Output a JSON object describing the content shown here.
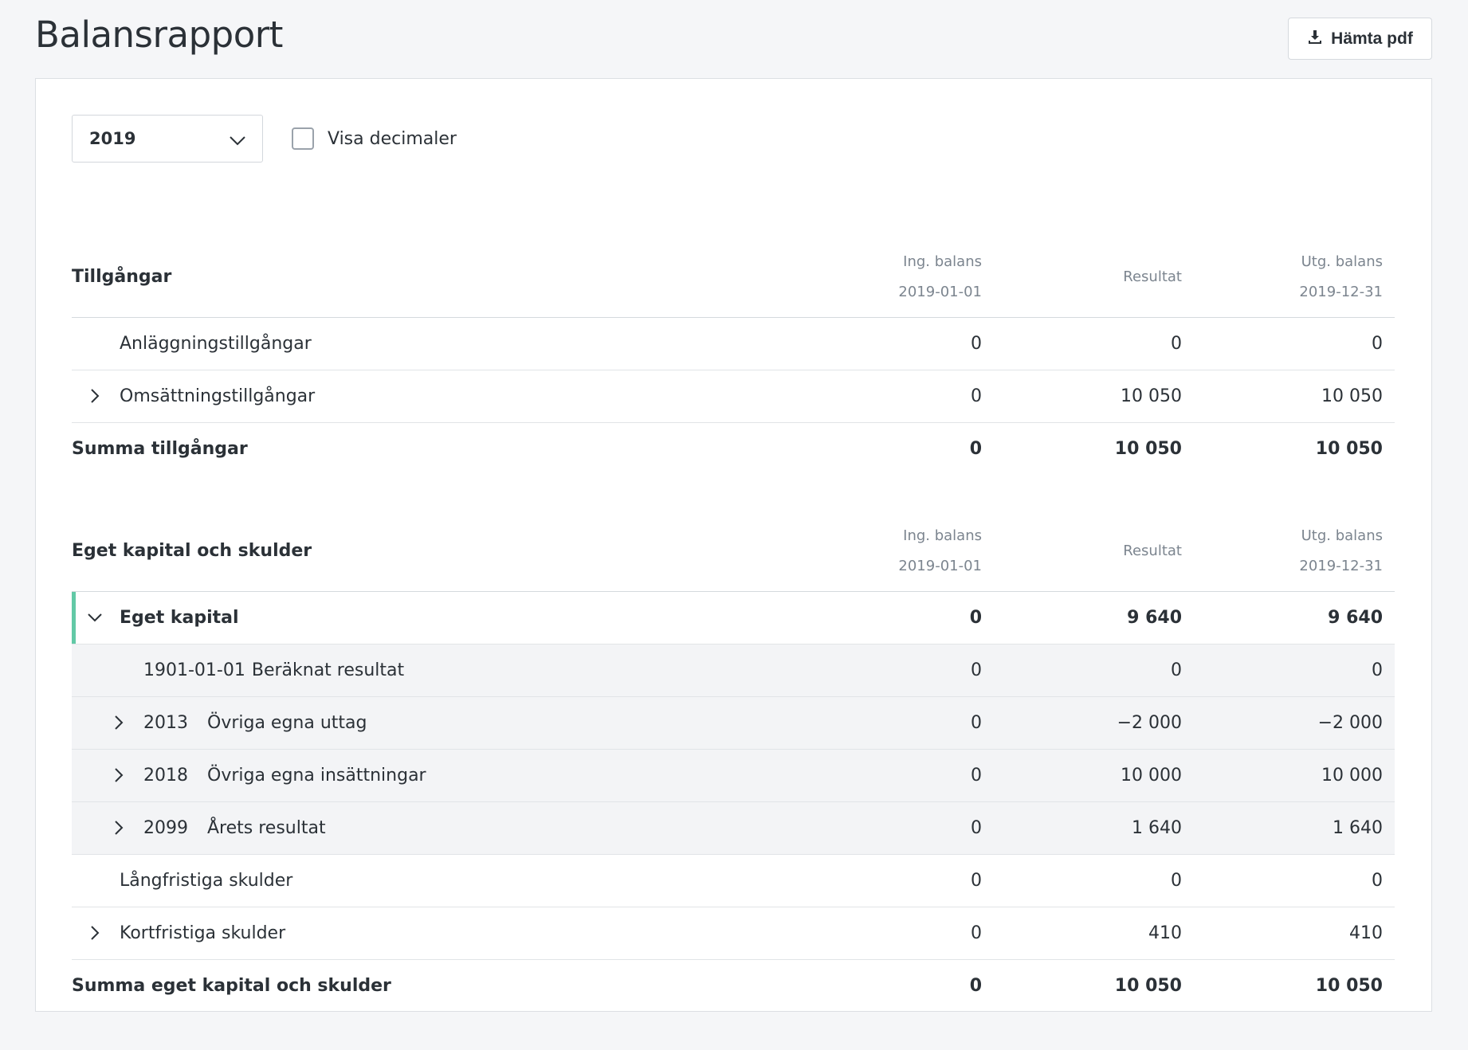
{
  "header": {
    "title": "Balansrapport",
    "pdf_button": "Hämta pdf"
  },
  "controls": {
    "year": "2019",
    "show_decimals_label": "Visa decimaler",
    "show_decimals_checked": false
  },
  "columns": {
    "opening_label": "Ing. balans",
    "opening_date": "2019-01-01",
    "result_label": "Resultat",
    "closing_label": "Utg. balans",
    "closing_date": "2019-12-31"
  },
  "assets": {
    "title": "Tillgångar",
    "rows": [
      {
        "label": "Anläggningstillgångar",
        "ing": "0",
        "res": "0",
        "utg": "0"
      },
      {
        "label": "Omsättningstillgångar",
        "ing": "0",
        "res": "10 050",
        "utg": "10 050"
      }
    ],
    "sum": {
      "label": "Summa tillgångar",
      "ing": "0",
      "res": "10 050",
      "utg": "10 050"
    }
  },
  "equity": {
    "title": "Eget kapital och skulder",
    "group": {
      "label": "Eget kapital",
      "ing": "0",
      "res": "9 640",
      "utg": "9 640"
    },
    "sub_rows": [
      {
        "account": "1901-01-01",
        "label": "Beräknat resultat",
        "ing": "0",
        "res": "0",
        "utg": "0"
      },
      {
        "account": "2013",
        "label": "Övriga egna uttag",
        "ing": "0",
        "res": "−2 000",
        "utg": "−2 000"
      },
      {
        "account": "2018",
        "label": "Övriga egna insättningar",
        "ing": "0",
        "res": "10 000",
        "utg": "10 000"
      },
      {
        "account": "2099",
        "label": "Årets resultat",
        "ing": "0",
        "res": "1 640",
        "utg": "1 640"
      }
    ],
    "rows": [
      {
        "label": "Långfristiga skulder",
        "ing": "0",
        "res": "0",
        "utg": "0"
      },
      {
        "label": "Kortfristiga skulder",
        "ing": "0",
        "res": "410",
        "utg": "410"
      }
    ],
    "sum": {
      "label": "Summa eget kapital och skulder",
      "ing": "0",
      "res": "10 050",
      "utg": "10 050"
    }
  },
  "colors": {
    "accent": "#62c9a6",
    "background": "#f5f6f8"
  }
}
